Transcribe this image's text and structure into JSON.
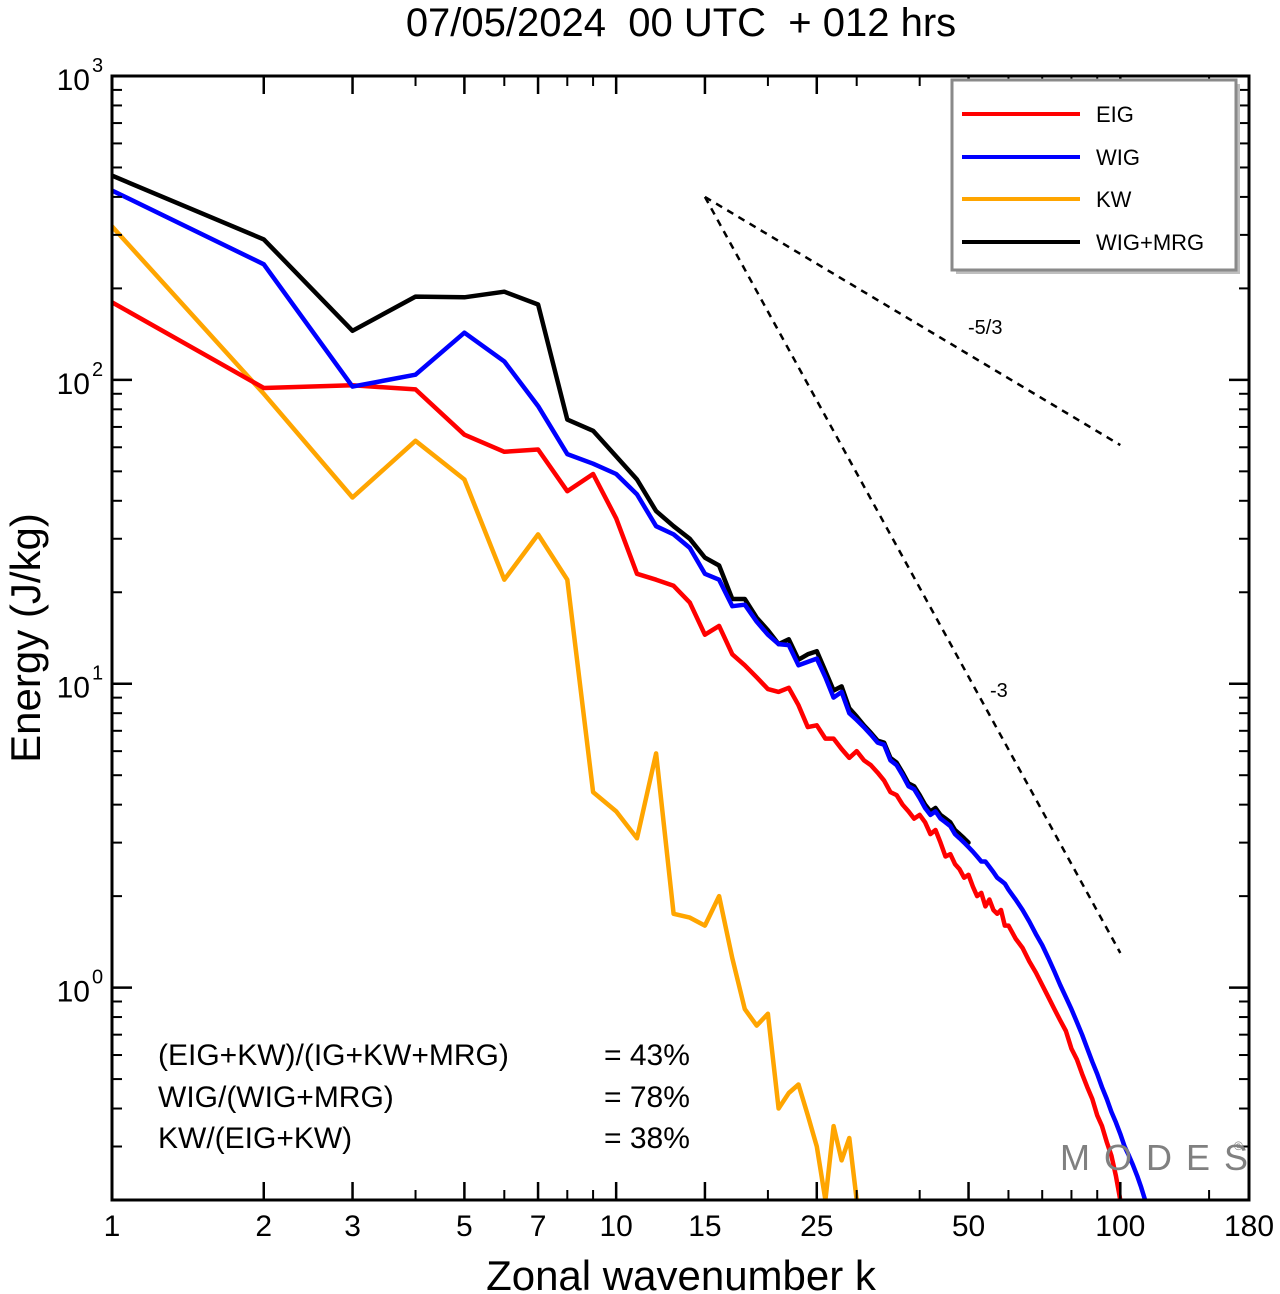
{
  "chart_data": {
    "type": "line",
    "title": "07/05/2024  00 UTC  + 012 hrs",
    "xlabel": "Zonal wavenumber k",
    "ylabel": "Energy (J/kg)",
    "xscale": "log",
    "yscale": "log",
    "xlim": [
      1,
      180
    ],
    "ylim": [
      0.2,
      1000
    ],
    "x_tick_labels": [
      "1",
      "2",
      "3",
      "5",
      "7",
      "10",
      "15",
      "25",
      "50",
      "100",
      "180"
    ],
    "y_tick_labels": [
      {
        "base": "10",
        "exp": "3"
      },
      {
        "base": "10",
        "exp": "2"
      },
      {
        "base": "10",
        "exp": "1"
      },
      {
        "base": "10",
        "exp": "0"
      }
    ],
    "legend_position": "top-right",
    "series": [
      {
        "name": "EIG",
        "color": "#ff0000",
        "points": [
          [
            1,
            180
          ],
          [
            2,
            94
          ],
          [
            3,
            96
          ],
          [
            4,
            93
          ],
          [
            5,
            66
          ],
          [
            6,
            58
          ],
          [
            7,
            59
          ],
          [
            8,
            43
          ],
          [
            9,
            49
          ],
          [
            10,
            35
          ],
          [
            11,
            23
          ],
          [
            12,
            22
          ],
          [
            13,
            21
          ],
          [
            14,
            18.5
          ],
          [
            15,
            14.5
          ],
          [
            16,
            15.5
          ],
          [
            17,
            12.5
          ],
          [
            18,
            11.5
          ],
          [
            19,
            10.5
          ],
          [
            20,
            9.6
          ],
          [
            21,
            9.4
          ],
          [
            22,
            9.7
          ],
          [
            23,
            8.5
          ],
          [
            24,
            7.2
          ],
          [
            25,
            7.3
          ],
          [
            26,
            6.6
          ],
          [
            27,
            6.6
          ],
          [
            28,
            6.1
          ],
          [
            29,
            5.7
          ],
          [
            30,
            6.0
          ],
          [
            31,
            5.6
          ],
          [
            32,
            5.4
          ],
          [
            33,
            5.1
          ],
          [
            34,
            4.8
          ],
          [
            35,
            4.4
          ],
          [
            36,
            4.3
          ],
          [
            37,
            4.0
          ],
          [
            38,
            3.8
          ],
          [
            39,
            3.6
          ],
          [
            40,
            3.7
          ],
          [
            41,
            3.5
          ],
          [
            42,
            3.2
          ],
          [
            43,
            3.3
          ],
          [
            44,
            3.0
          ],
          [
            45,
            2.7
          ],
          [
            46,
            2.75
          ],
          [
            47,
            2.55
          ],
          [
            48,
            2.45
          ],
          [
            49,
            2.3
          ],
          [
            50,
            2.35
          ],
          [
            51,
            2.15
          ],
          [
            52,
            2.0
          ],
          [
            53,
            2.05
          ],
          [
            54,
            1.85
          ],
          [
            55,
            1.95
          ],
          [
            56,
            1.8
          ],
          [
            57,
            1.75
          ],
          [
            58,
            1.8
          ],
          [
            59,
            1.6
          ],
          [
            60,
            1.6
          ],
          [
            62,
            1.45
          ],
          [
            64,
            1.35
          ],
          [
            66,
            1.22
          ],
          [
            68,
            1.12
          ],
          [
            70,
            1.02
          ],
          [
            72,
            0.93
          ],
          [
            74,
            0.85
          ],
          [
            76,
            0.78
          ],
          [
            78,
            0.72
          ],
          [
            80,
            0.63
          ],
          [
            82,
            0.58
          ],
          [
            84,
            0.52
          ],
          [
            86,
            0.47
          ],
          [
            88,
            0.43
          ],
          [
            90,
            0.38
          ],
          [
            92,
            0.35
          ],
          [
            94,
            0.31
          ],
          [
            96,
            0.28
          ],
          [
            98,
            0.24
          ],
          [
            100,
            0.2
          ]
        ]
      },
      {
        "name": "WIG",
        "color": "#0000ff",
        "points": [
          [
            1,
            420
          ],
          [
            2,
            240
          ],
          [
            3,
            95
          ],
          [
            4,
            104
          ],
          [
            5,
            143
          ],
          [
            6,
            115
          ],
          [
            7,
            82
          ],
          [
            8,
            57
          ],
          [
            9,
            53
          ],
          [
            10,
            49
          ],
          [
            11,
            42
          ],
          [
            12,
            33
          ],
          [
            13,
            31
          ],
          [
            14,
            28
          ],
          [
            15,
            23
          ],
          [
            16,
            22
          ],
          [
            17,
            18
          ],
          [
            18,
            18.2
          ],
          [
            19,
            16
          ],
          [
            20,
            14.5
          ],
          [
            21,
            13.5
          ],
          [
            22,
            13.4
          ],
          [
            23,
            11.5
          ],
          [
            24,
            11.8
          ],
          [
            25,
            12.1
          ],
          [
            26,
            10.5
          ],
          [
            27,
            9.0
          ],
          [
            28,
            9.4
          ],
          [
            29,
            8.0
          ],
          [
            30,
            7.6
          ],
          [
            31,
            7.2
          ],
          [
            32,
            6.8
          ],
          [
            33,
            6.4
          ],
          [
            34,
            6.3
          ],
          [
            35,
            5.6
          ],
          [
            36,
            5.4
          ],
          [
            37,
            5.0
          ],
          [
            38,
            4.6
          ],
          [
            39,
            4.5
          ],
          [
            40,
            4.2
          ],
          [
            41,
            3.9
          ],
          [
            42,
            3.7
          ],
          [
            43,
            3.8
          ],
          [
            44,
            3.6
          ],
          [
            45,
            3.5
          ],
          [
            46,
            3.4
          ],
          [
            47,
            3.2
          ],
          [
            48,
            3.1
          ],
          [
            49,
            3.0
          ],
          [
            50,
            2.9
          ],
          [
            51,
            2.8
          ],
          [
            52,
            2.7
          ],
          [
            53,
            2.6
          ],
          [
            54,
            2.6
          ],
          [
            55,
            2.5
          ],
          [
            56,
            2.4
          ],
          [
            57,
            2.3
          ],
          [
            58,
            2.25
          ],
          [
            59,
            2.2
          ],
          [
            60,
            2.1
          ],
          [
            62,
            1.95
          ],
          [
            64,
            1.8
          ],
          [
            66,
            1.65
          ],
          [
            68,
            1.5
          ],
          [
            70,
            1.38
          ],
          [
            72,
            1.25
          ],
          [
            74,
            1.13
          ],
          [
            76,
            1.02
          ],
          [
            78,
            0.93
          ],
          [
            80,
            0.85
          ],
          [
            82,
            0.77
          ],
          [
            84,
            0.7
          ],
          [
            86,
            0.63
          ],
          [
            88,
            0.57
          ],
          [
            90,
            0.52
          ],
          [
            92,
            0.47
          ],
          [
            94,
            0.43
          ],
          [
            96,
            0.39
          ],
          [
            98,
            0.36
          ],
          [
            100,
            0.33
          ],
          [
            102,
            0.3
          ],
          [
            104,
            0.28
          ],
          [
            106,
            0.26
          ],
          [
            108,
            0.24
          ],
          [
            110,
            0.22
          ],
          [
            112,
            0.2
          ]
        ]
      },
      {
        "name": "KW",
        "color": "#ffa500",
        "points": [
          [
            1,
            320
          ],
          [
            2,
            90
          ],
          [
            3,
            41
          ],
          [
            4,
            63
          ],
          [
            5,
            47
          ],
          [
            6,
            22
          ],
          [
            7,
            31
          ],
          [
            8,
            22
          ],
          [
            9,
            4.4
          ],
          [
            10,
            3.8
          ],
          [
            11,
            3.1
          ],
          [
            12,
            5.9
          ],
          [
            13,
            1.75
          ],
          [
            14,
            1.7
          ],
          [
            15,
            1.6
          ],
          [
            16,
            2.0
          ],
          [
            17,
            1.25
          ],
          [
            18,
            0.85
          ],
          [
            19,
            0.75
          ],
          [
            20,
            0.82
          ],
          [
            21,
            0.4
          ],
          [
            22,
            0.45
          ],
          [
            23,
            0.48
          ],
          [
            24,
            0.38
          ],
          [
            25,
            0.3
          ],
          [
            26,
            0.2
          ],
          [
            27,
            0.35
          ],
          [
            28,
            0.27
          ],
          [
            29,
            0.32
          ],
          [
            30,
            0.2
          ]
        ]
      },
      {
        "name": "WIG+MRG",
        "color": "#000000",
        "points": [
          [
            1,
            470
          ],
          [
            2,
            290
          ],
          [
            3,
            145
          ],
          [
            4,
            188
          ],
          [
            5,
            187
          ],
          [
            6,
            195
          ],
          [
            7,
            177
          ],
          [
            8,
            74
          ],
          [
            9,
            68
          ],
          [
            10,
            56
          ],
          [
            11,
            47
          ],
          [
            12,
            37
          ],
          [
            13,
            33
          ],
          [
            14,
            30
          ],
          [
            15,
            26
          ],
          [
            16,
            24.5
          ],
          [
            17,
            19
          ],
          [
            18,
            19
          ],
          [
            19,
            16.5
          ],
          [
            20,
            15
          ],
          [
            21,
            13.5
          ],
          [
            22,
            14
          ],
          [
            23,
            12
          ],
          [
            24,
            12.5
          ],
          [
            25,
            12.8
          ],
          [
            26,
            11
          ],
          [
            27,
            9.5
          ],
          [
            28,
            9.8
          ],
          [
            29,
            8.3
          ],
          [
            30,
            7.8
          ],
          [
            31,
            7.3
          ],
          [
            32,
            6.9
          ],
          [
            33,
            6.5
          ],
          [
            34,
            6.4
          ],
          [
            35,
            5.7
          ],
          [
            36,
            5.5
          ],
          [
            37,
            5.1
          ],
          [
            38,
            4.7
          ],
          [
            39,
            4.6
          ],
          [
            40,
            4.3
          ],
          [
            41,
            4.0
          ],
          [
            42,
            3.8
          ],
          [
            43,
            3.9
          ],
          [
            44,
            3.7
          ],
          [
            45,
            3.6
          ],
          [
            46,
            3.5
          ],
          [
            47,
            3.3
          ],
          [
            48,
            3.2
          ],
          [
            49,
            3.1
          ],
          [
            50,
            3.0
          ]
        ]
      }
    ],
    "reference_lines": [
      {
        "label": "-5/3",
        "from": [
          15,
          400
        ],
        "to": [
          100,
          61
        ]
      },
      {
        "label": "-3",
        "from": [
          15,
          400
        ],
        "to": [
          100,
          1.3
        ]
      }
    ]
  },
  "ratios": [
    {
      "label": "(EIG+KW)/(IG+KW+MRG)",
      "value": "= 43%"
    },
    {
      "label": "WIG/(WIG+MRG)",
      "value": "= 78%"
    },
    {
      "label": "KW/(EIG+KW)",
      "value": "= 38%"
    }
  ],
  "watermark": {
    "text": "MODES",
    "mark": "©"
  }
}
